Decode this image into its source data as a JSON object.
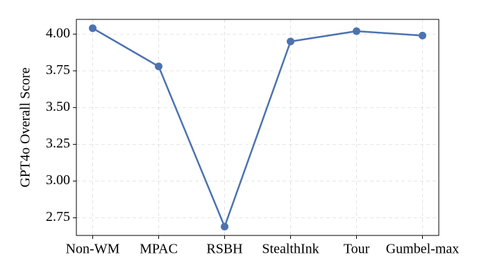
{
  "chart_data": {
    "type": "line",
    "y_label": "GPT4o Overall Score",
    "categories": [
      "Non-WM",
      "MPAC",
      "RSBH",
      "StealthInk",
      "Tour",
      "Gumbel-max"
    ],
    "series": [
      {
        "color": "#4c72b0",
        "values": [
          4.04,
          3.78,
          2.69,
          3.95,
          4.02,
          3.99
        ]
      }
    ],
    "ylim": [
      2.63,
      4.1
    ],
    "yticks": [
      {
        "value": 2.75,
        "label": "2.75"
      },
      {
        "value": 3,
        "label": "3.00"
      },
      3.25,
      {
        "value": 3.5,
        "label": "3.50"
      },
      3.75,
      {
        "value": 4,
        "label": "4.00"
      }
    ],
    "grid": true
  }
}
